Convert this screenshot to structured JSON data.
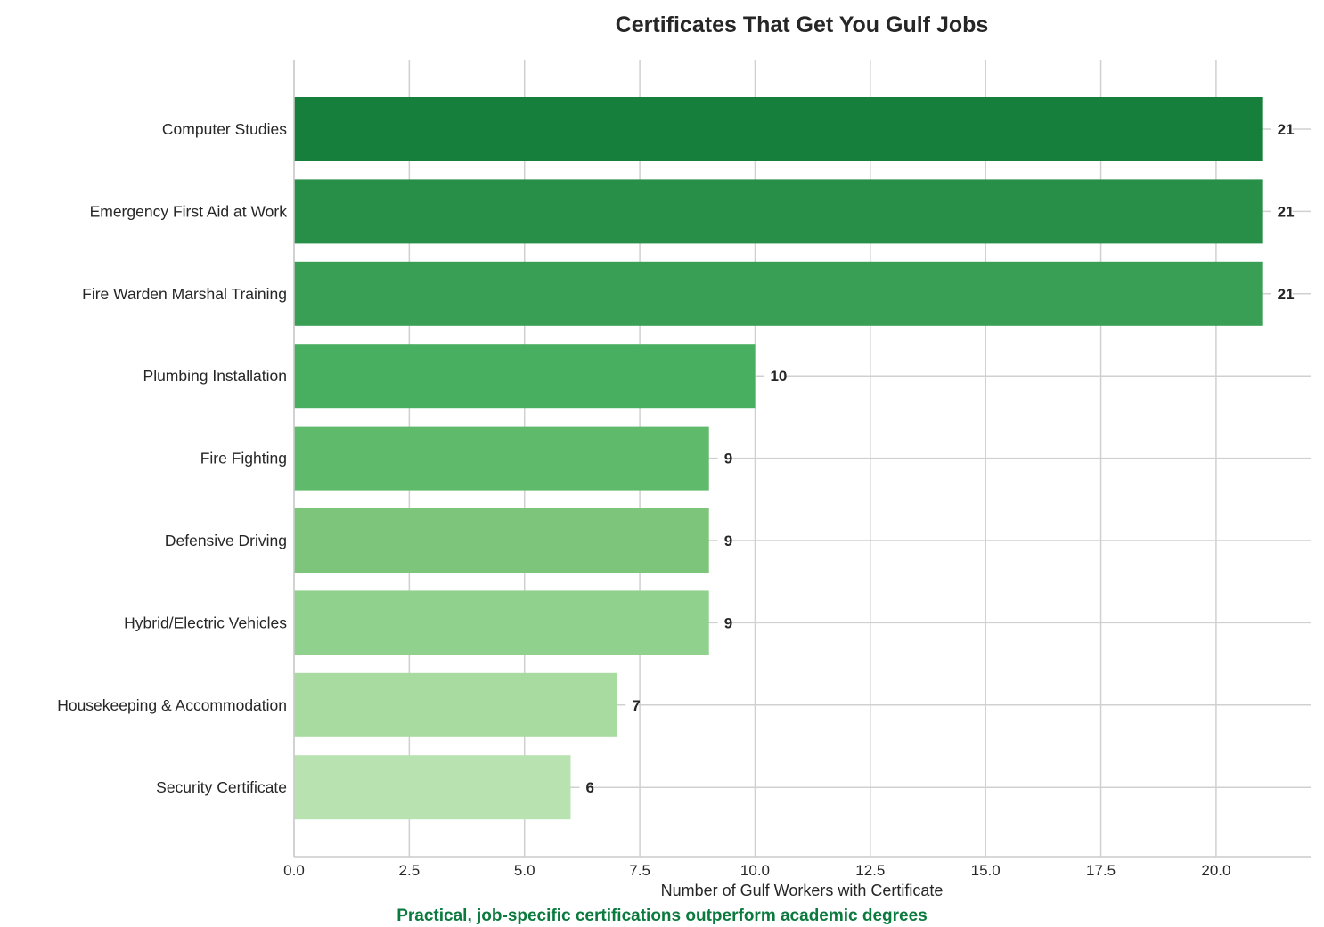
{
  "chart_data": {
    "type": "bar",
    "orientation": "horizontal",
    "title": "Certificates That Get You Gulf Jobs",
    "xlabel": "Number of Gulf Workers with Certificate",
    "ylabel": "",
    "categories": [
      "Computer Studies",
      "Emergency First Aid at Work",
      "Fire Warden Marshal Training",
      "Plumbing Installation",
      "Fire Fighting",
      "Defensive Driving",
      "Hybrid/Electric Vehicles",
      "Housekeeping & Accommodation",
      "Security Certificate"
    ],
    "values": [
      21,
      21,
      21,
      10,
      9,
      9,
      9,
      7,
      6
    ],
    "data_labels": [
      "21",
      "21",
      "21",
      "10",
      "9",
      "9",
      "9",
      "7",
      "6"
    ],
    "colors": [
      "#177f3c",
      "#288f48",
      "#389f54",
      "#48af61",
      "#60ba6c",
      "#7cc57b",
      "#91d18e",
      "#a7db9f",
      "#b8e3b1"
    ],
    "xlim": [
      0,
      22.05
    ],
    "xticks": [
      0,
      2.5,
      5,
      7.5,
      10,
      12.5,
      15,
      17.5,
      20
    ],
    "xtick_labels": [
      "0.0",
      "2.5",
      "5.0",
      "7.5",
      "10.0",
      "12.5",
      "15.0",
      "17.5",
      "20.0"
    ],
    "grid": true,
    "annotation": "Practical, job-specific certifications outperform academic degrees",
    "annotation_color": "#0b7a3e"
  }
}
